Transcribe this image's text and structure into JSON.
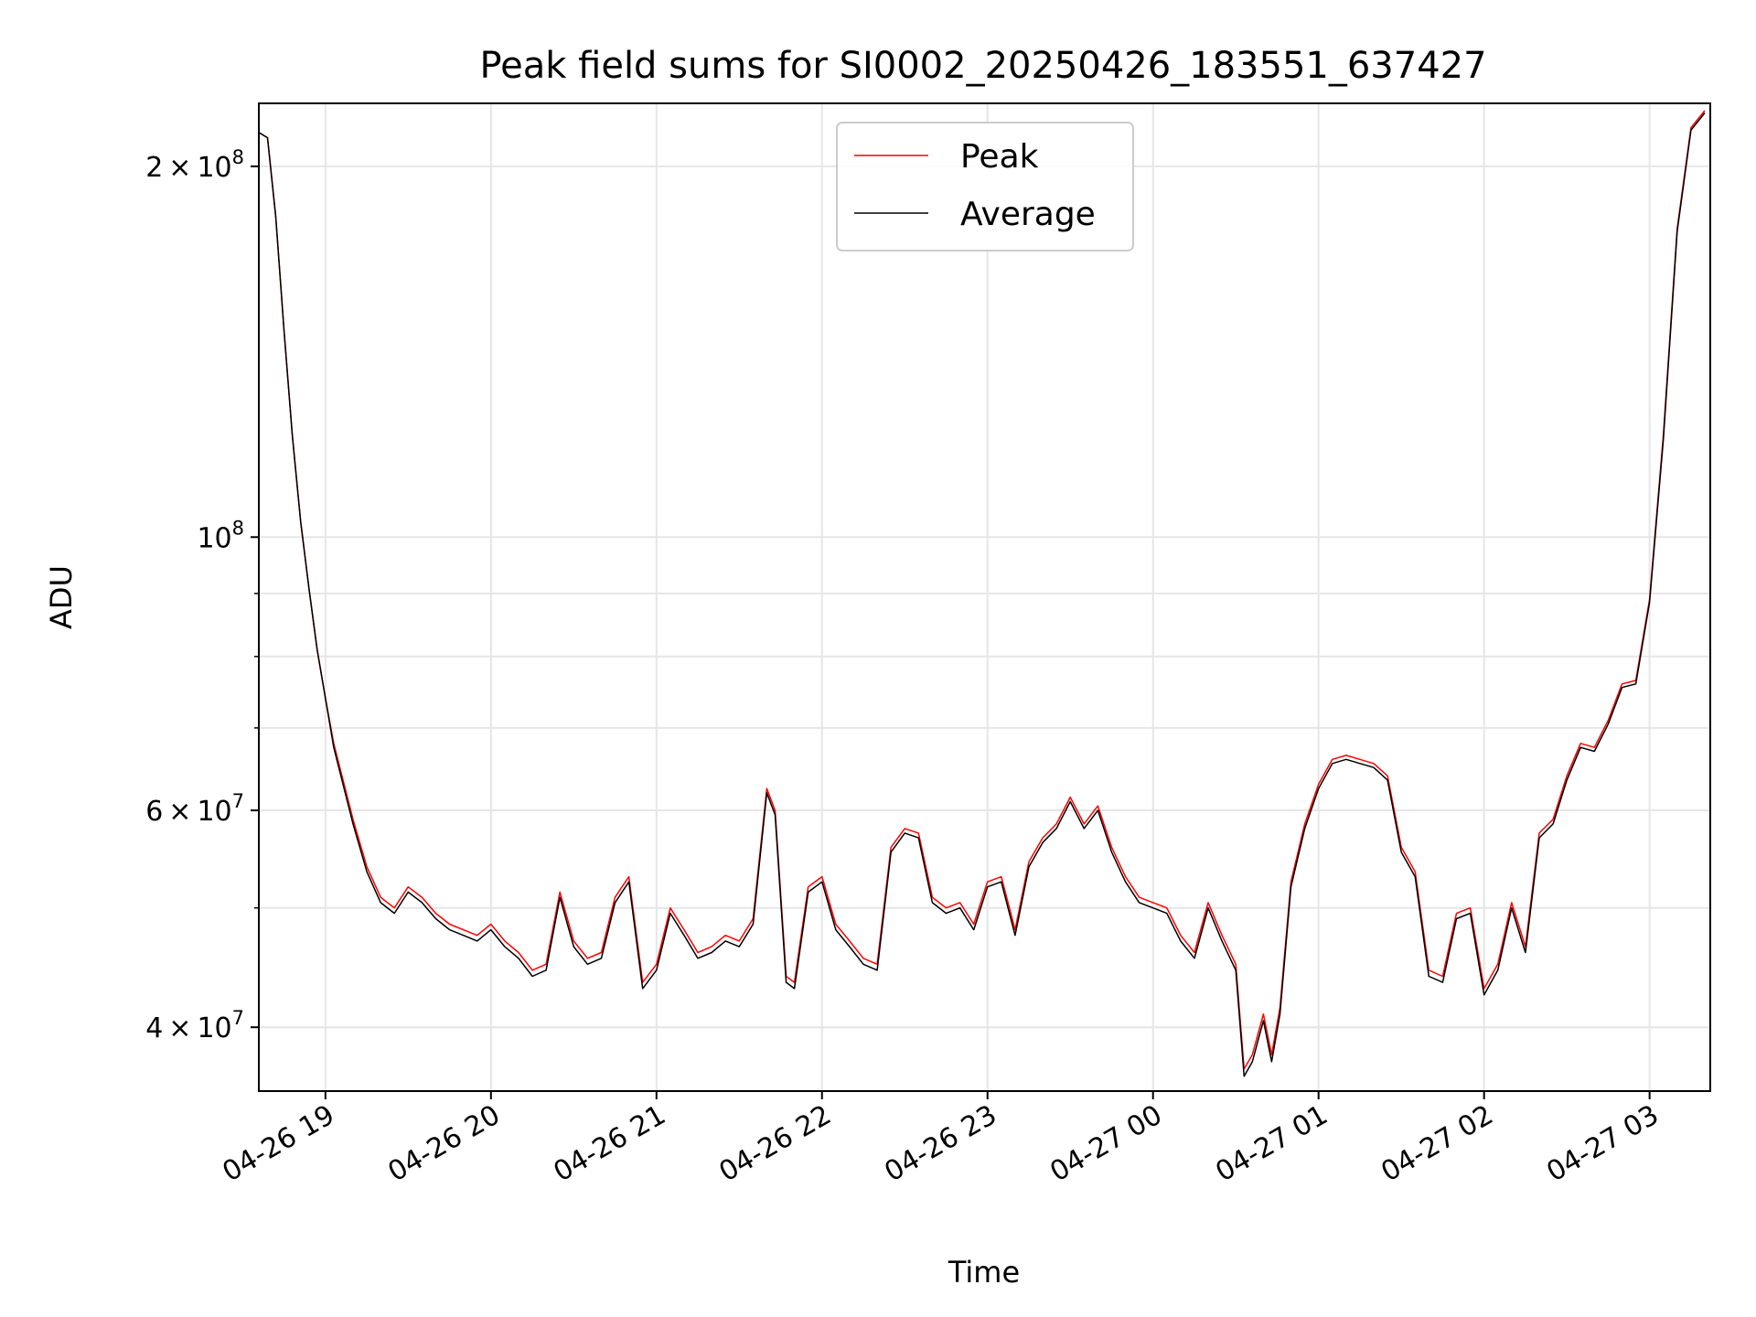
{
  "chart_data": {
    "type": "line",
    "title": "Peak field sums for SI0002_20250426_183551_637427",
    "xlabel": "Time",
    "ylabel": "ADU",
    "yscale": "log",
    "grid": true,
    "legend_position": "top-center",
    "xlim": [
      "2025-04-26 18:35:51",
      "2025-04-27 03:22:00"
    ],
    "ylim": [
      35500000,
      225000000
    ],
    "x_ticks": [
      {
        "time": "2025-04-26 19:00",
        "label": "04-26 19"
      },
      {
        "time": "2025-04-26 20:00",
        "label": "04-26 20"
      },
      {
        "time": "2025-04-26 21:00",
        "label": "04-26 21"
      },
      {
        "time": "2025-04-26 22:00",
        "label": "04-26 22"
      },
      {
        "time": "2025-04-26 23:00",
        "label": "04-26 23"
      },
      {
        "time": "2025-04-27 00:00",
        "label": "04-27 00"
      },
      {
        "time": "2025-04-27 01:00",
        "label": "04-27 01"
      },
      {
        "time": "2025-04-27 02:00",
        "label": "04-27 02"
      },
      {
        "time": "2025-04-27 03:00",
        "label": "04-27 03"
      }
    ],
    "y_major_ticks": [
      {
        "value": 40000000,
        "mantissa": "4",
        "exp": "7"
      },
      {
        "value": 60000000,
        "mantissa": "6",
        "exp": "7"
      },
      {
        "value": 100000000,
        "mantissa": "",
        "exp": "8"
      },
      {
        "value": 200000000,
        "mantissa": "2",
        "exp": "8"
      }
    ],
    "y_minor_ticks": [
      50000000,
      70000000,
      80000000,
      90000000
    ],
    "series": [
      {
        "name": "Peak",
        "color": "#ff0000",
        "x": [
          "2025-04-26 18:36",
          "2025-04-26 18:39",
          "2025-04-26 18:42",
          "2025-04-26 18:45",
          "2025-04-26 18:48",
          "2025-04-26 18:51",
          "2025-04-26 18:54",
          "2025-04-26 18:57",
          "2025-04-26 19:00",
          "2025-04-26 19:03",
          "2025-04-26 19:06",
          "2025-04-26 19:10",
          "2025-04-26 19:15",
          "2025-04-26 19:20",
          "2025-04-26 19:25",
          "2025-04-26 19:30",
          "2025-04-26 19:35",
          "2025-04-26 19:40",
          "2025-04-26 19:45",
          "2025-04-26 19:50",
          "2025-04-26 19:55",
          "2025-04-26 20:00",
          "2025-04-26 20:05",
          "2025-04-26 20:10",
          "2025-04-26 20:15",
          "2025-04-26 20:20",
          "2025-04-26 20:25",
          "2025-04-26 20:30",
          "2025-04-26 20:35",
          "2025-04-26 20:40",
          "2025-04-26 20:45",
          "2025-04-26 20:50",
          "2025-04-26 20:55",
          "2025-04-26 21:00",
          "2025-04-26 21:05",
          "2025-04-26 21:10",
          "2025-04-26 21:15",
          "2025-04-26 21:20",
          "2025-04-26 21:25",
          "2025-04-26 21:30",
          "2025-04-26 21:35",
          "2025-04-26 21:40",
          "2025-04-26 21:43",
          "2025-04-26 21:47",
          "2025-04-26 21:50",
          "2025-04-26 21:55",
          "2025-04-26 22:00",
          "2025-04-26 22:05",
          "2025-04-26 22:10",
          "2025-04-26 22:15",
          "2025-04-26 22:20",
          "2025-04-26 22:25",
          "2025-04-26 22:30",
          "2025-04-26 22:35",
          "2025-04-26 22:40",
          "2025-04-26 22:45",
          "2025-04-26 22:50",
          "2025-04-26 22:55",
          "2025-04-26 23:00",
          "2025-04-26 23:05",
          "2025-04-26 23:10",
          "2025-04-26 23:15",
          "2025-04-26 23:20",
          "2025-04-26 23:25",
          "2025-04-26 23:30",
          "2025-04-26 23:35",
          "2025-04-26 23:40",
          "2025-04-26 23:45",
          "2025-04-26 23:50",
          "2025-04-26 23:55",
          "2025-04-27 00:00",
          "2025-04-27 00:05",
          "2025-04-27 00:10",
          "2025-04-27 00:15",
          "2025-04-27 00:20",
          "2025-04-27 00:25",
          "2025-04-27 00:30",
          "2025-04-27 00:33",
          "2025-04-27 00:36",
          "2025-04-27 00:40",
          "2025-04-27 00:43",
          "2025-04-27 00:46",
          "2025-04-27 00:50",
          "2025-04-27 00:55",
          "2025-04-27 01:00",
          "2025-04-27 01:05",
          "2025-04-27 01:10",
          "2025-04-27 01:15",
          "2025-04-27 01:20",
          "2025-04-27 01:25",
          "2025-04-27 01:30",
          "2025-04-27 01:35",
          "2025-04-27 01:40",
          "2025-04-27 01:45",
          "2025-04-27 01:50",
          "2025-04-27 01:55",
          "2025-04-27 02:00",
          "2025-04-27 02:05",
          "2025-04-27 02:10",
          "2025-04-27 02:15",
          "2025-04-27 02:20",
          "2025-04-27 02:25",
          "2025-04-27 02:30",
          "2025-04-27 02:35",
          "2025-04-27 02:40",
          "2025-04-27 02:45",
          "2025-04-27 02:50",
          "2025-04-27 02:55",
          "2025-04-27 03:00",
          "2025-04-27 03:05",
          "2025-04-27 03:10",
          "2025-04-27 03:15",
          "2025-04-27 03:20"
        ],
        "values": [
          213000000,
          211000000,
          182000000,
          147000000,
          121000000,
          103000000,
          91000000,
          81000000,
          74000000,
          68000000,
          64000000,
          59000000,
          54000000,
          51000000,
          50000000,
          52000000,
          51000000,
          49500000,
          48500000,
          48000000,
          47500000,
          48500000,
          47000000,
          46000000,
          44500000,
          45000000,
          51500000,
          47000000,
          45500000,
          46000000,
          51000000,
          53000000,
          43500000,
          45000000,
          50000000,
          48000000,
          46000000,
          46500000,
          47500000,
          47000000,
          49000000,
          62500000,
          60000000,
          44000000,
          43500000,
          52000000,
          53000000,
          48500000,
          47000000,
          45500000,
          45000000,
          56000000,
          58000000,
          57500000,
          51000000,
          50000000,
          50500000,
          48500000,
          52500000,
          53000000,
          48000000,
          54500000,
          57000000,
          58500000,
          61500000,
          58500000,
          60500000,
          56000000,
          53000000,
          51000000,
          50500000,
          50000000,
          47500000,
          46000000,
          50500000,
          47500000,
          45000000,
          37000000,
          38000000,
          41000000,
          38000000,
          41500000,
          52500000,
          58500000,
          63000000,
          66000000,
          66500000,
          66000000,
          65500000,
          64000000,
          56000000,
          53500000,
          44500000,
          44000000,
          49500000,
          50000000,
          43000000,
          45000000,
          50500000,
          46500000,
          57500000,
          59000000,
          64000000,
          68000000,
          67500000,
          71000000,
          76000000,
          76500000,
          89000000,
          121000000,
          178000000,
          215000000,
          222000000
        ]
      },
      {
        "name": "Average",
        "color": "#000000",
        "x": [
          "2025-04-26 18:36",
          "2025-04-26 18:39",
          "2025-04-26 18:42",
          "2025-04-26 18:45",
          "2025-04-26 18:48",
          "2025-04-26 18:51",
          "2025-04-26 18:54",
          "2025-04-26 18:57",
          "2025-04-26 19:00",
          "2025-04-26 19:03",
          "2025-04-26 19:06",
          "2025-04-26 19:10",
          "2025-04-26 19:15",
          "2025-04-26 19:20",
          "2025-04-26 19:25",
          "2025-04-26 19:30",
          "2025-04-26 19:35",
          "2025-04-26 19:40",
          "2025-04-26 19:45",
          "2025-04-26 19:50",
          "2025-04-26 19:55",
          "2025-04-26 20:00",
          "2025-04-26 20:05",
          "2025-04-26 20:10",
          "2025-04-26 20:15",
          "2025-04-26 20:20",
          "2025-04-26 20:25",
          "2025-04-26 20:30",
          "2025-04-26 20:35",
          "2025-04-26 20:40",
          "2025-04-26 20:45",
          "2025-04-26 20:50",
          "2025-04-26 20:55",
          "2025-04-26 21:00",
          "2025-04-26 21:05",
          "2025-04-26 21:10",
          "2025-04-26 21:15",
          "2025-04-26 21:20",
          "2025-04-26 21:25",
          "2025-04-26 21:30",
          "2025-04-26 21:35",
          "2025-04-26 21:40",
          "2025-04-26 21:43",
          "2025-04-26 21:47",
          "2025-04-26 21:50",
          "2025-04-26 21:55",
          "2025-04-26 22:00",
          "2025-04-26 22:05",
          "2025-04-26 22:10",
          "2025-04-26 22:15",
          "2025-04-26 22:20",
          "2025-04-26 22:25",
          "2025-04-26 22:30",
          "2025-04-26 22:35",
          "2025-04-26 22:40",
          "2025-04-26 22:45",
          "2025-04-26 22:50",
          "2025-04-26 22:55",
          "2025-04-26 23:00",
          "2025-04-26 23:05",
          "2025-04-26 23:10",
          "2025-04-26 23:15",
          "2025-04-26 23:20",
          "2025-04-26 23:25",
          "2025-04-26 23:30",
          "2025-04-26 23:35",
          "2025-04-26 23:40",
          "2025-04-26 23:45",
          "2025-04-26 23:50",
          "2025-04-26 23:55",
          "2025-04-27 00:00",
          "2025-04-27 00:05",
          "2025-04-27 00:10",
          "2025-04-27 00:15",
          "2025-04-27 00:20",
          "2025-04-27 00:25",
          "2025-04-27 00:30",
          "2025-04-27 00:33",
          "2025-04-27 00:36",
          "2025-04-27 00:40",
          "2025-04-27 00:43",
          "2025-04-27 00:46",
          "2025-04-27 00:50",
          "2025-04-27 00:55",
          "2025-04-27 01:00",
          "2025-04-27 01:05",
          "2025-04-27 01:10",
          "2025-04-27 01:15",
          "2025-04-27 01:20",
          "2025-04-27 01:25",
          "2025-04-27 01:30",
          "2025-04-27 01:35",
          "2025-04-27 01:40",
          "2025-04-27 01:45",
          "2025-04-27 01:50",
          "2025-04-27 01:55",
          "2025-04-27 02:00",
          "2025-04-27 02:05",
          "2025-04-27 02:10",
          "2025-04-27 02:15",
          "2025-04-27 02:20",
          "2025-04-27 02:25",
          "2025-04-27 02:30",
          "2025-04-27 02:35",
          "2025-04-27 02:40",
          "2025-04-27 02:45",
          "2025-04-27 02:50",
          "2025-04-27 02:55",
          "2025-04-27 03:00",
          "2025-04-27 03:05",
          "2025-04-27 03:10",
          "2025-04-27 03:15",
          "2025-04-27 03:20"
        ],
        "values": [
          213000000,
          211000000,
          182000000,
          147000000,
          121000000,
          103000000,
          91000000,
          81000000,
          74000000,
          67500000,
          63500000,
          58500000,
          53500000,
          50500000,
          49500000,
          51500000,
          50500000,
          49000000,
          48000000,
          47500000,
          47000000,
          48000000,
          46500000,
          45500000,
          44000000,
          44500000,
          51000000,
          46500000,
          45000000,
          45500000,
          50500000,
          52500000,
          43000000,
          44500000,
          49500000,
          47500000,
          45500000,
          46000000,
          47000000,
          46500000,
          48500000,
          62000000,
          59500000,
          43500000,
          43000000,
          51500000,
          52500000,
          48000000,
          46500000,
          45000000,
          44500000,
          55500000,
          57500000,
          57000000,
          50500000,
          49500000,
          50000000,
          48000000,
          52000000,
          52500000,
          47500000,
          54000000,
          56500000,
          58000000,
          61000000,
          58000000,
          60000000,
          55500000,
          52500000,
          50500000,
          50000000,
          49500000,
          47000000,
          45500000,
          50000000,
          47000000,
          44500000,
          36500000,
          37500000,
          40500000,
          37500000,
          41000000,
          52000000,
          58000000,
          62500000,
          65500000,
          66000000,
          65500000,
          65000000,
          63500000,
          55500000,
          53000000,
          44000000,
          43500000,
          49000000,
          49500000,
          42500000,
          44500000,
          50000000,
          46000000,
          57000000,
          58500000,
          63500000,
          67500000,
          67000000,
          70500000,
          75500000,
          76000000,
          88500000,
          120000000,
          177000000,
          214000000,
          221000000
        ]
      }
    ]
  }
}
